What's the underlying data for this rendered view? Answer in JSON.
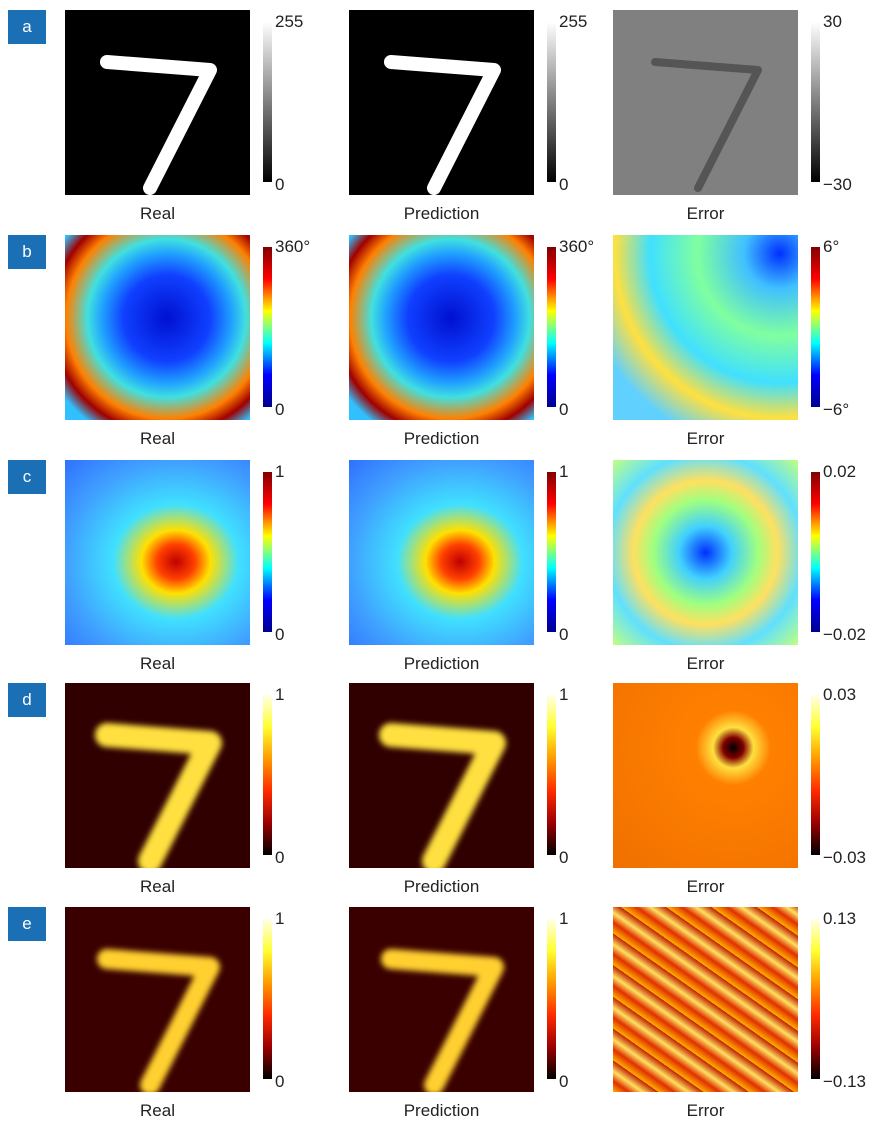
{
  "rows": [
    {
      "label": "a",
      "panels": [
        {
          "caption": "Real",
          "max": "255",
          "min": "0"
        },
        {
          "caption": "Prediction",
          "max": "255",
          "min": "0"
        },
        {
          "caption": "Error",
          "max": "30",
          "min": "−30"
        }
      ]
    },
    {
      "label": "b",
      "panels": [
        {
          "caption": "Real",
          "max": "360°",
          "min": "0"
        },
        {
          "caption": "Prediction",
          "max": "360°",
          "min": "0"
        },
        {
          "caption": "Error",
          "max": "6°",
          "min": "−6°"
        }
      ]
    },
    {
      "label": "c",
      "panels": [
        {
          "caption": "Real",
          "max": "1",
          "min": "0"
        },
        {
          "caption": "Prediction",
          "max": "1",
          "min": "0"
        },
        {
          "caption": "Error",
          "max": "0.02",
          "min": "−0.02"
        }
      ]
    },
    {
      "label": "d",
      "panels": [
        {
          "caption": "Real",
          "max": "1",
          "min": "0"
        },
        {
          "caption": "Prediction",
          "max": "1",
          "min": "0"
        },
        {
          "caption": "Error",
          "max": "0.03",
          "min": "−0.03"
        }
      ]
    },
    {
      "label": "e",
      "panels": [
        {
          "caption": "Real",
          "max": "1",
          "min": "0"
        },
        {
          "caption": "Prediction",
          "max": "1",
          "min": "0"
        },
        {
          "caption": "Error",
          "max": "0.13",
          "min": "−0.13"
        }
      ]
    }
  ]
}
